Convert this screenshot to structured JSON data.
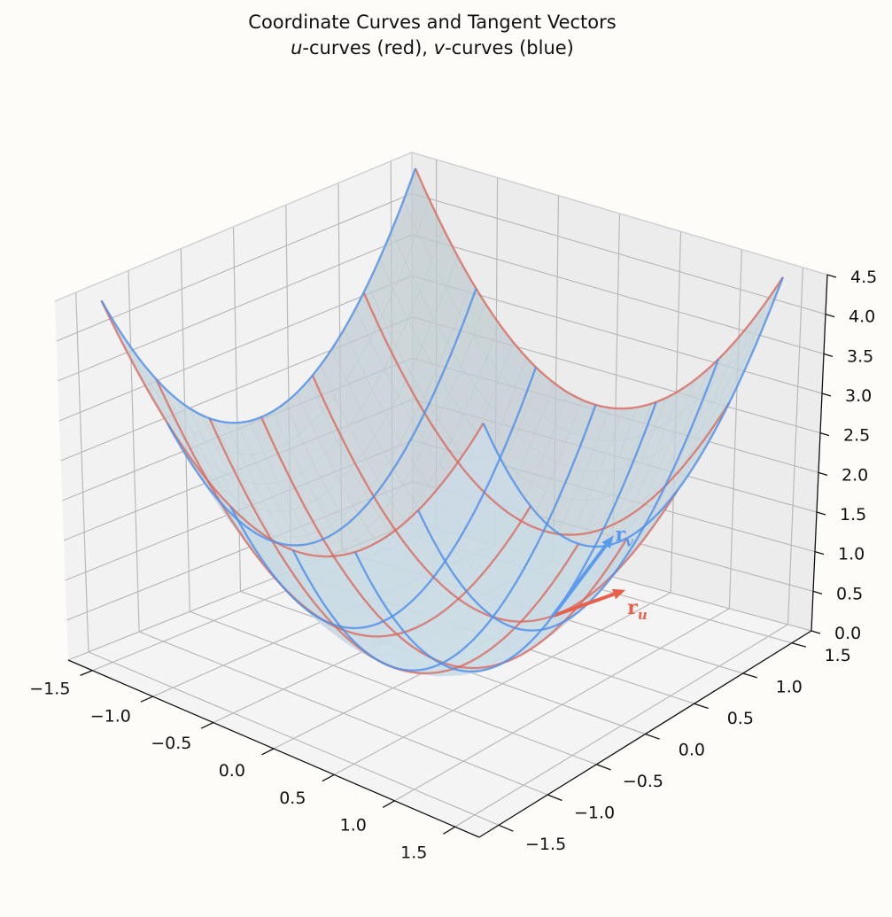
{
  "chart_data": {
    "type": "surface3d",
    "title_line1": "Coordinate Curves and Tangent Vectors",
    "title_line2": {
      "u": "u",
      "u_rest": "-curves (red), ",
      "v": "v",
      "v_rest": "-curves (blue)"
    },
    "surface": "z = u^2 + v^2 (paraboloid)",
    "xlim": [
      -1.7,
      1.7
    ],
    "ylim": [
      -1.7,
      1.7
    ],
    "zlim": [
      0,
      4.5
    ],
    "xticks": [
      -1.5,
      -1.0,
      -0.5,
      0.0,
      0.5,
      1.0,
      1.5
    ],
    "yticks": [
      -1.5,
      -1.0,
      -0.5,
      0.0,
      0.5,
      1.0,
      1.5
    ],
    "zticks": [
      0.0,
      0.5,
      1.0,
      1.5,
      2.0,
      2.5,
      3.0,
      3.5,
      4.0,
      4.5
    ],
    "xtick_labels": [
      "−1.5",
      "−1.0",
      "−0.5",
      "0.0",
      "0.5",
      "1.0",
      "1.5"
    ],
    "ytick_labels": [
      "−1.5",
      "−1.0",
      "−0.5",
      "0.0",
      "0.5",
      "1.0",
      "1.5"
    ],
    "ztick_labels": [
      "0.0",
      "0.5",
      "1.0",
      "1.5",
      "2.0",
      "2.5",
      "3.0",
      "3.5",
      "4.0",
      "4.5"
    ],
    "u_curves": {
      "color": "#d9645a",
      "fixed_v": [
        -1.5,
        -1.0,
        -0.5,
        0.0,
        0.5,
        1.0,
        1.5
      ]
    },
    "v_curves": {
      "color": "#4f8ee8",
      "fixed_u": [
        -1.5,
        -1.0,
        -0.5,
        0.0,
        0.5,
        1.0,
        1.5
      ]
    },
    "tangent_point": [
      0.5,
      0.5,
      0.5
    ],
    "r_u": {
      "label": "r",
      "subscript": "u",
      "color": "#e8604c",
      "vector": [
        0.6,
        0,
        0.6
      ]
    },
    "r_v": {
      "label": "r",
      "subscript": "v",
      "color": "#5b9bef",
      "vector": [
        0,
        0.6,
        0.6
      ]
    },
    "grid": true,
    "surface_color": "#d5e6ef"
  }
}
